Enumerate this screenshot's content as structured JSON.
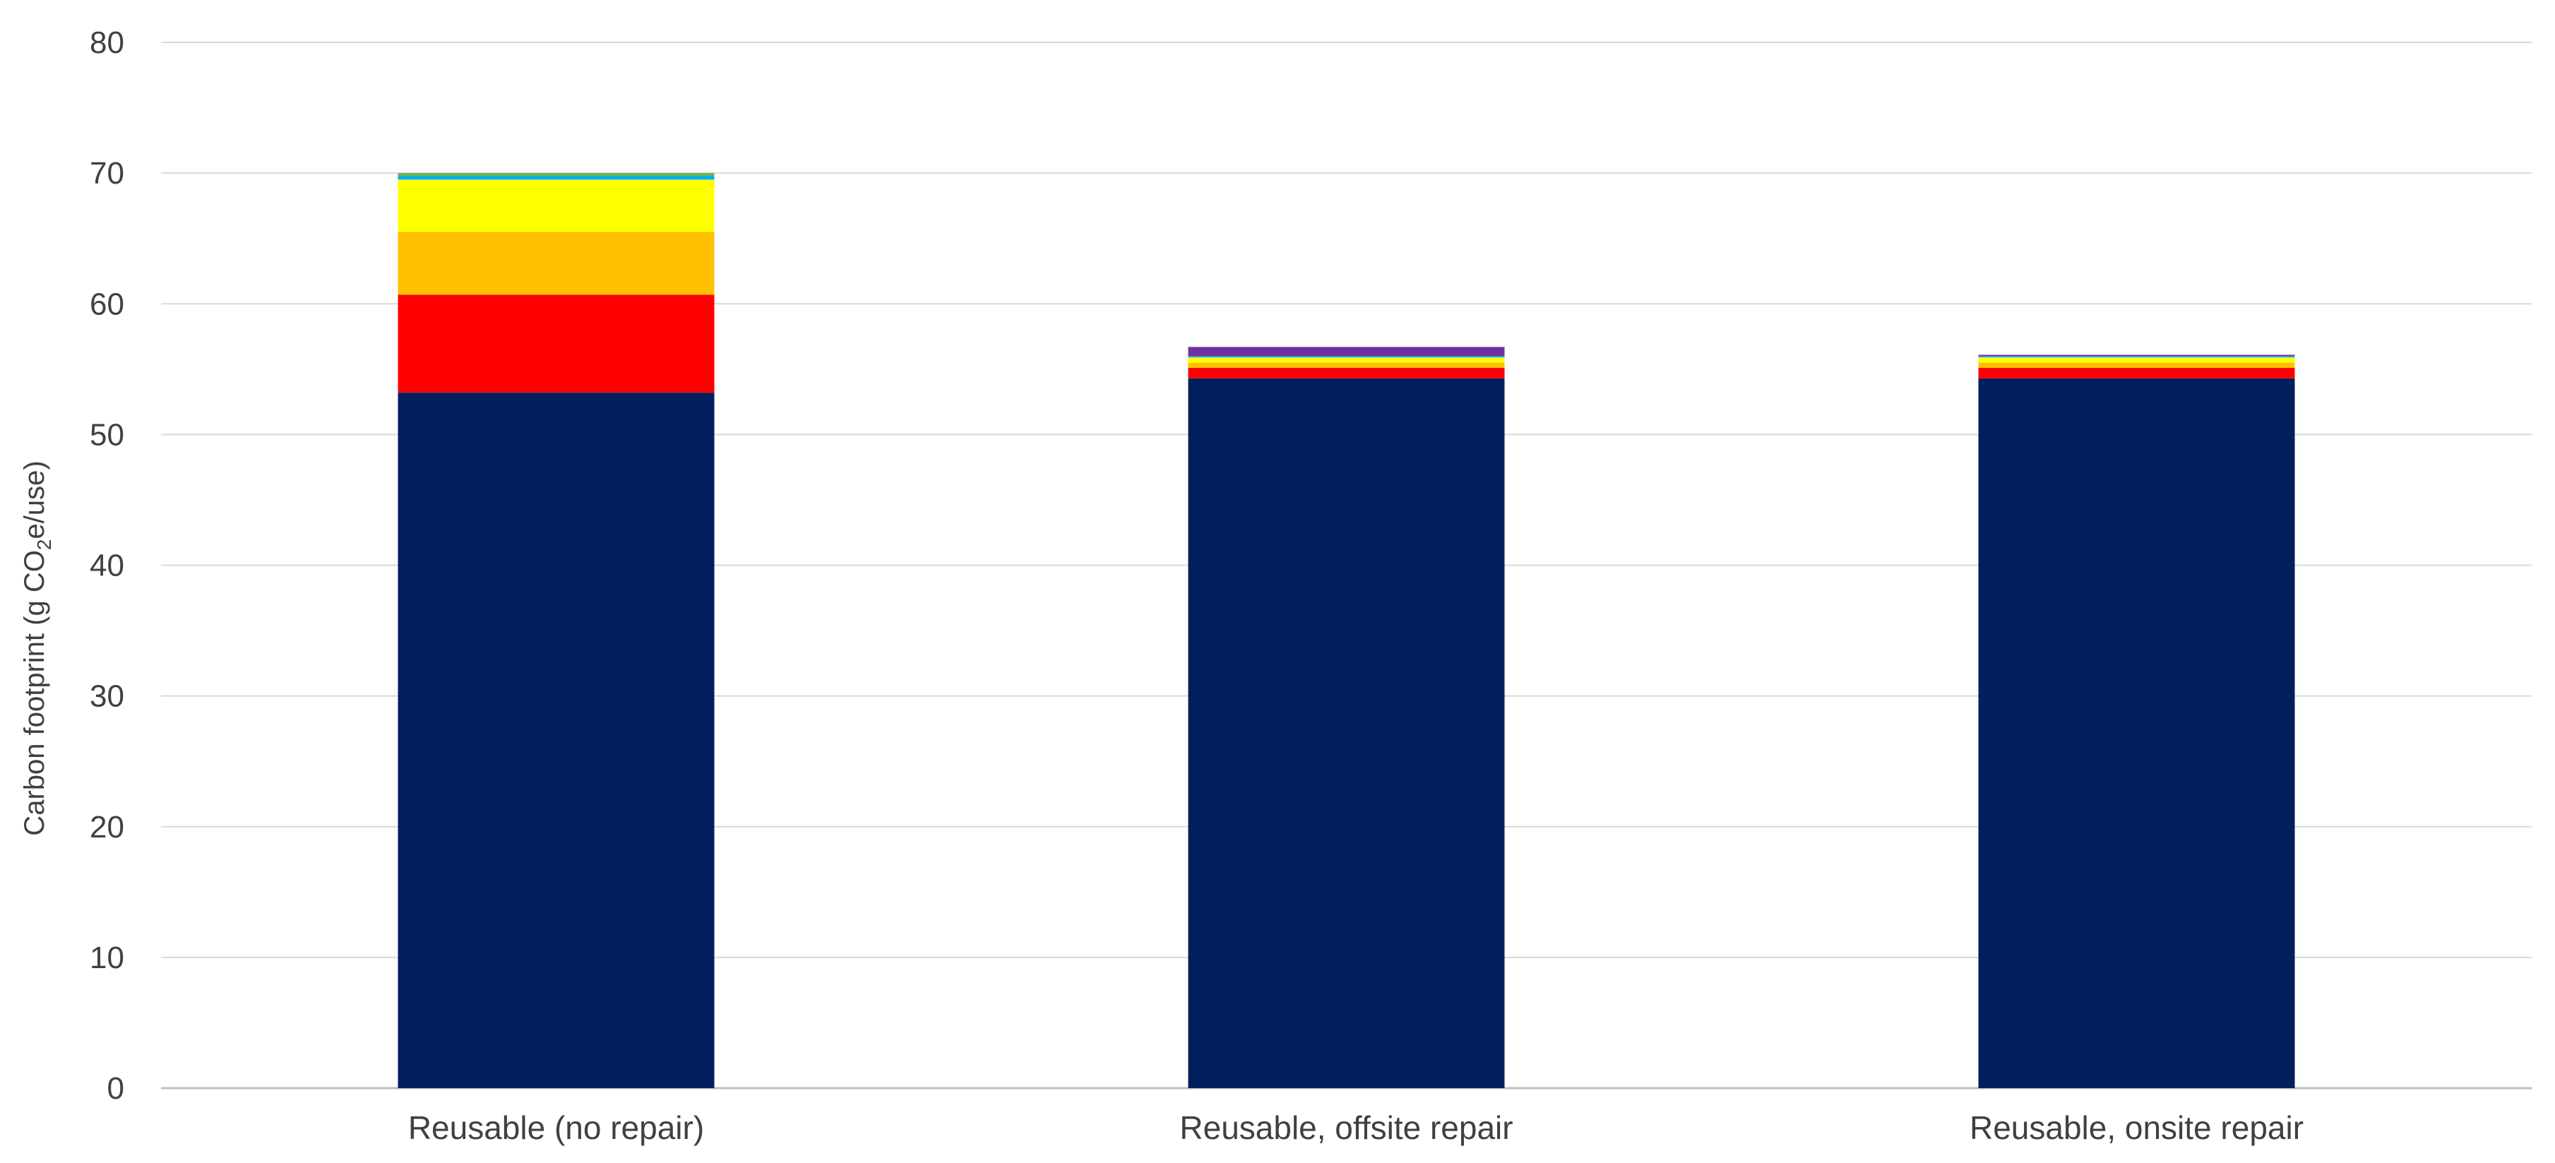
{
  "chart_data": {
    "type": "bar",
    "stacked": true,
    "title": "",
    "xlabel": "",
    "ylabel": {
      "before": "Carbon footprint (g CO",
      "subscript": "2",
      "after": "e/use)"
    },
    "ylim": [
      0,
      80
    ],
    "yticks": [
      0,
      10,
      20,
      30,
      40,
      50,
      60,
      70,
      80
    ],
    "grid": true,
    "legend": "none",
    "categories": [
      "Reusable (no repair)",
      "Reusable, offsite repair",
      "Reusable, onsite repair"
    ],
    "series": [
      {
        "color": "#001f5c",
        "values": [
          53.2,
          54.3,
          54.3
        ]
      },
      {
        "color": "#ff0000",
        "values": [
          7.5,
          0.8,
          0.8
        ]
      },
      {
        "color": "#ffc000",
        "values": [
          4.8,
          0.4,
          0.4
        ]
      },
      {
        "color": "#ffff00",
        "values": [
          4.0,
          0.4,
          0.4
        ]
      },
      {
        "color": "#00b0f0",
        "values": [
          0.3,
          0.1,
          0.1
        ]
      },
      {
        "color": "#70ad47",
        "values": [
          0.2,
          0.0,
          0.0
        ]
      },
      {
        "color": "#7030a0",
        "values": [
          0.0,
          0.7,
          0.1
        ]
      }
    ]
  }
}
